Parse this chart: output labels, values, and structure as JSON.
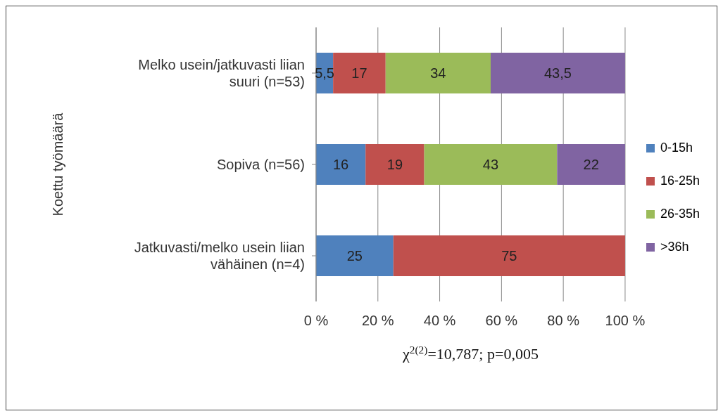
{
  "chart_data": {
    "type": "bar",
    "orientation": "horizontal",
    "stacked": true,
    "categories": [
      "Melko usein/jatkuvasti liian suuri (n=53)",
      "Sopiva (n=56)",
      "Jatkuvasti/melko usein liian vähäinen (n=4)"
    ],
    "series": [
      {
        "name": "0-15h",
        "color": "#4f81bd",
        "values": [
          5.5,
          16,
          25
        ],
        "value_labels": [
          "5,5",
          "16",
          "25"
        ]
      },
      {
        "name": "16-25h",
        "color": "#c0504d",
        "values": [
          17,
          19,
          75
        ],
        "value_labels": [
          "17",
          "19",
          "75"
        ]
      },
      {
        "name": "26-35h",
        "color": "#9bbb59",
        "values": [
          34,
          43,
          null
        ],
        "value_labels": [
          "34",
          "43",
          null
        ]
      },
      {
        "name": ">36h",
        "color": "#8064a2",
        "values": [
          43.5,
          22,
          null
        ],
        "value_labels": [
          "43,5",
          "22",
          null
        ]
      }
    ],
    "xlim": [
      0,
      100
    ],
    "xticks": [
      {
        "value": 0,
        "label": "0 %"
      },
      {
        "value": 20,
        "label": "20 %"
      },
      {
        "value": 40,
        "label": "40 %"
      },
      {
        "value": 60,
        "label": "60 %"
      },
      {
        "value": 80,
        "label": "80 %"
      },
      {
        "value": 100,
        "label": "100 %"
      }
    ],
    "xlabel": "χ$^{2(2)}$=10,787; p=0,005",
    "ylabel": "Koettu työmäärä",
    "grid": "x",
    "legend": "right"
  }
}
